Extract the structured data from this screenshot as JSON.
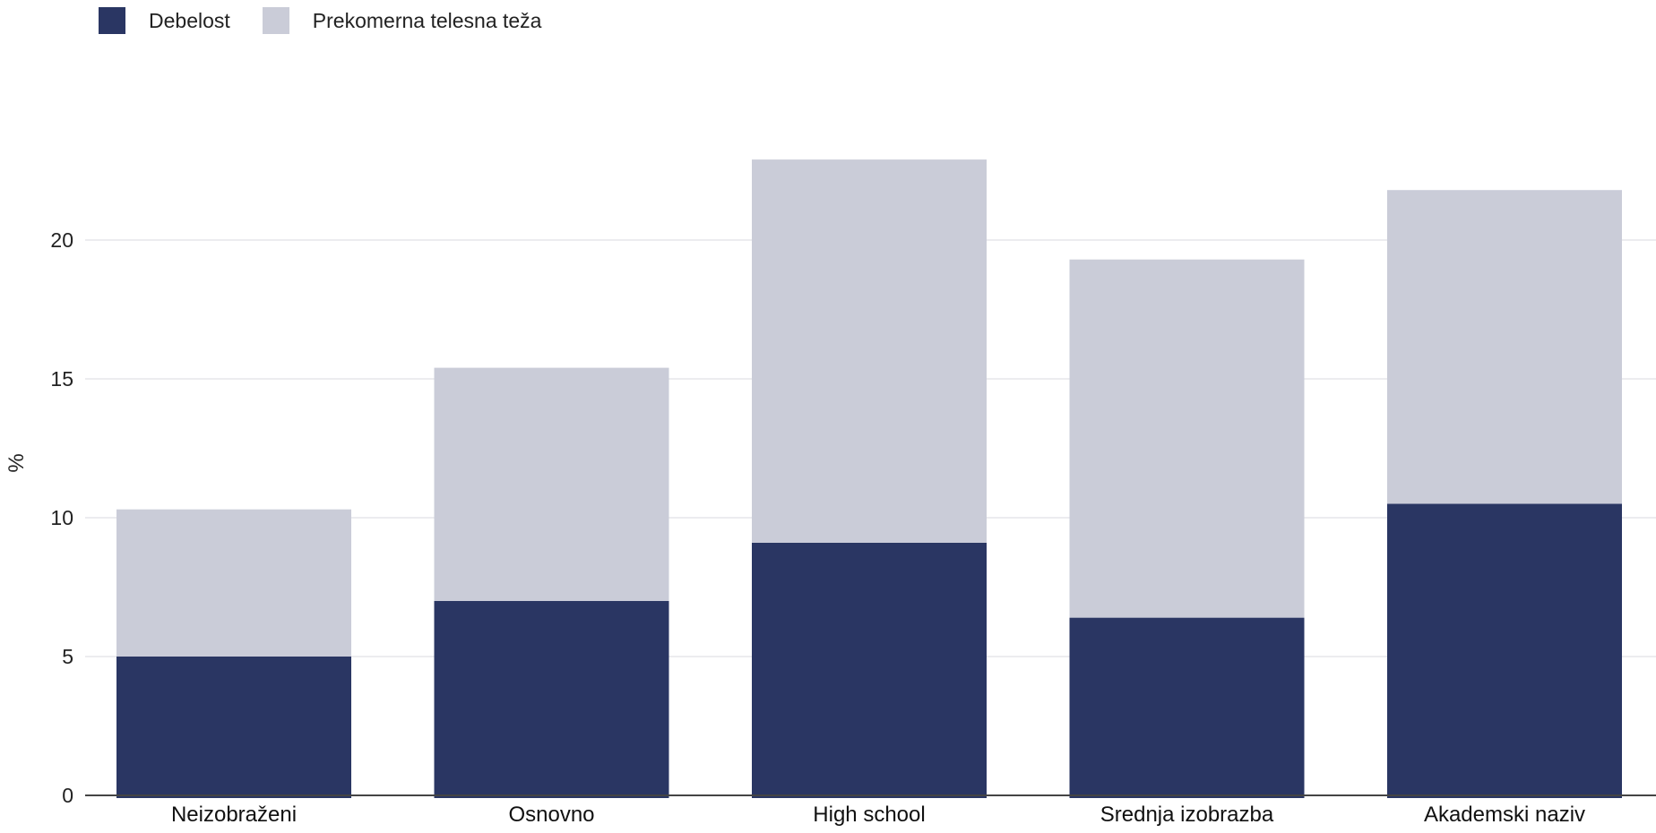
{
  "chart_data": {
    "type": "bar",
    "stacked": true,
    "categories": [
      "Neizobraženi",
      "Osnovno",
      "High school",
      "Srednja izobrazba",
      "Akademski naziv"
    ],
    "series": [
      {
        "name": "Debelost",
        "color": "#2a3663",
        "values": [
          5.0,
          7.0,
          9.1,
          6.4,
          10.5
        ]
      },
      {
        "name": "Prekomerna telesna teža",
        "color": "#caccd8",
        "values": [
          5.3,
          8.4,
          13.8,
          12.9,
          11.3
        ]
      }
    ],
    "ylabel": "%",
    "ylim": [
      0,
      25
    ],
    "yticks": [
      0,
      5,
      10,
      15,
      20
    ],
    "grid": true,
    "legend": "top-left"
  }
}
